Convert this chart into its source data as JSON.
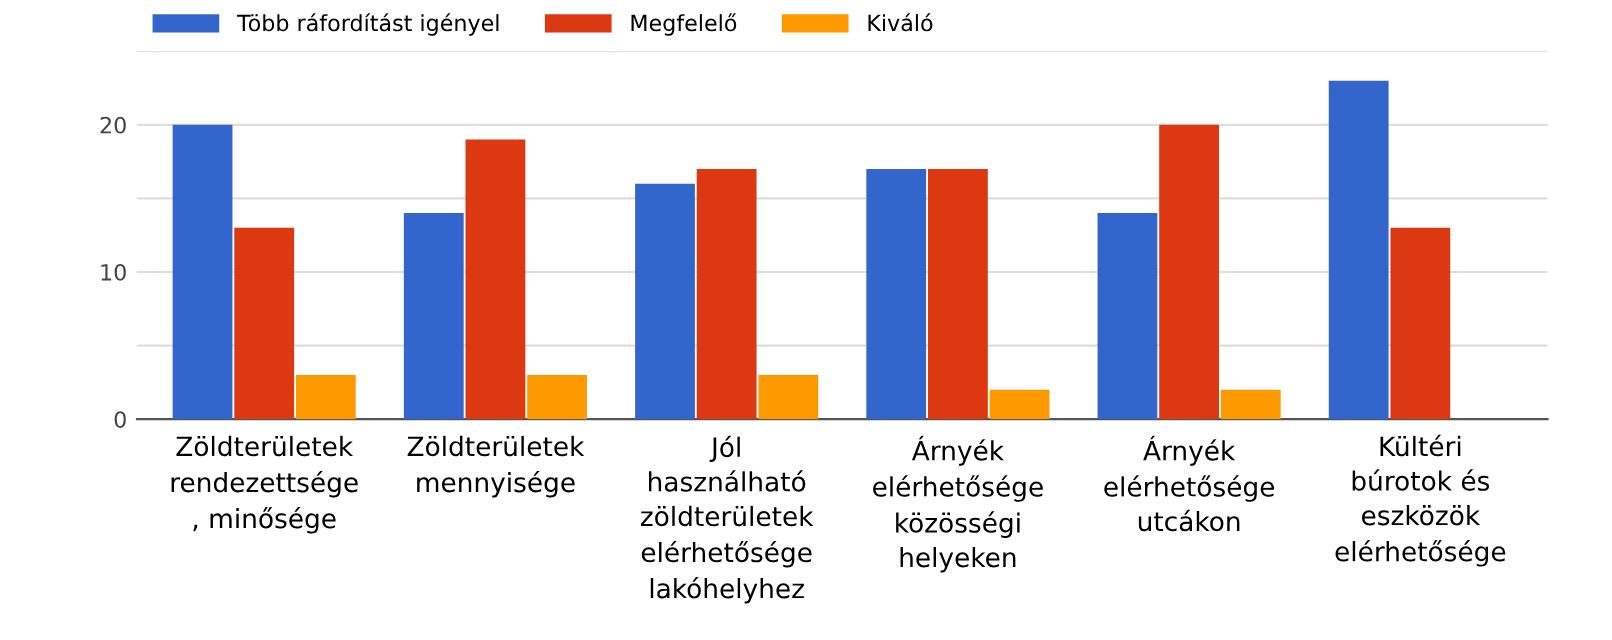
{
  "chart_data": {
    "type": "bar",
    "categories": [
      "Zöldterületek\nrendezettsége\n, minősége",
      "Zöldterületek\nmennyisége",
      "Jól\nhasználható\nzöldterületek\nelérhetősége\nlakóhelyhez",
      "Árnyék\nelérhetősége\nközösségi\nhelyeken",
      "Árnyék\nelérhetősége\nutcákon",
      "Kültéri\nbúrotok és\neszközök\nelérhetősége"
    ],
    "series": [
      {
        "name": "Több ráfordítást igényel",
        "color": "#3366cc",
        "values": [
          20,
          14,
          16,
          17,
          14,
          23
        ]
      },
      {
        "name": "Megfelelő",
        "color": "#dc3912",
        "values": [
          13,
          19,
          17,
          17,
          20,
          13
        ]
      },
      {
        "name": "Kiváló",
        "color": "#ff9900",
        "values": [
          3,
          3,
          3,
          2,
          2,
          0
        ]
      }
    ],
    "ylim": [
      0,
      25
    ],
    "yticks": [
      0,
      {
        "value": 5,
        "label": null
      },
      10,
      {
        "value": 15,
        "label": null
      },
      20,
      {
        "value": 25,
        "label": null
      }
    ],
    "grid": "y",
    "legend": "top left"
  }
}
